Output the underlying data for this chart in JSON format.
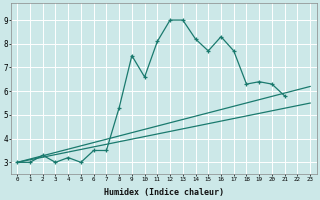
{
  "title": "",
  "xlabel": "Humidex (Indice chaleur)",
  "background_color": "#cce8e8",
  "grid_color": "#ffffff",
  "line_color": "#1a7a6e",
  "xlim": [
    -0.5,
    23.5
  ],
  "ylim": [
    2.5,
    9.7
  ],
  "xticks": [
    0,
    1,
    2,
    3,
    4,
    5,
    6,
    7,
    8,
    9,
    10,
    11,
    12,
    13,
    14,
    15,
    16,
    17,
    18,
    19,
    20,
    21,
    22,
    23
  ],
  "yticks": [
    3,
    4,
    5,
    6,
    7,
    8,
    9
  ],
  "series1_x": [
    0,
    1,
    2,
    3,
    4,
    5,
    6,
    7,
    8,
    9,
    10,
    11,
    12,
    13,
    14,
    15,
    16,
    17,
    18,
    19,
    20,
    21
  ],
  "series1_y": [
    3.0,
    3.0,
    3.3,
    3.0,
    3.2,
    3.0,
    3.5,
    3.5,
    5.3,
    7.5,
    6.6,
    8.1,
    9.0,
    9.0,
    8.2,
    7.7,
    8.3,
    7.7,
    6.3,
    6.4,
    6.3,
    5.8
  ],
  "series2_x": [
    0,
    23
  ],
  "series2_y": [
    3.0,
    5.5
  ],
  "series3_x": [
    0,
    23
  ],
  "series3_y": [
    3.0,
    6.2
  ]
}
